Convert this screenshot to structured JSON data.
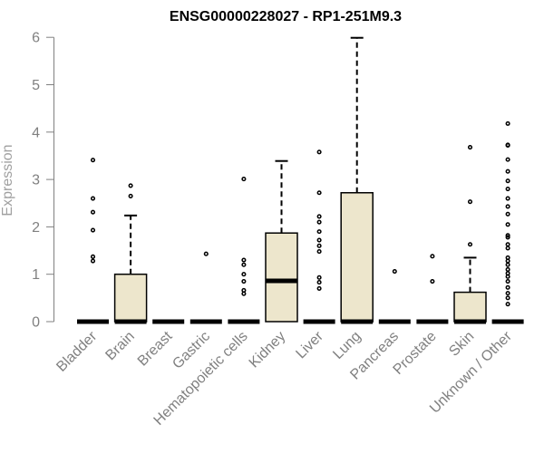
{
  "chart_data": {
    "type": "boxplot",
    "title": "ENSG00000228027 - RP1-251M9.3",
    "xlabel": "",
    "ylabel": "Expression",
    "ylim": [
      0,
      6
    ],
    "yticks": [
      0,
      1,
      2,
      3,
      4,
      5,
      6
    ],
    "box_color": "#EDE6CC",
    "categories": [
      "Bladder",
      "Brain",
      "Breast",
      "Gastric",
      "Hematopoietic cells",
      "Kidney",
      "Liver",
      "Lung",
      "Pancreas",
      "Prostate",
      "Skin",
      "Unknown / Other"
    ],
    "boxes": [
      {
        "category": "Bladder",
        "q1": 0,
        "median": 0,
        "q3": 0,
        "whisker_low": 0,
        "whisker_high": 0,
        "outliers": [
          1.28,
          1.37,
          1.93,
          2.31,
          2.6,
          3.41
        ]
      },
      {
        "category": "Brain",
        "q1": 0,
        "median": 0,
        "q3": 1.0,
        "whisker_low": 0,
        "whisker_high": 2.24,
        "outliers": [
          2.65,
          2.87
        ]
      },
      {
        "category": "Breast",
        "q1": 0,
        "median": 0,
        "q3": 0,
        "whisker_low": 0,
        "whisker_high": 0,
        "outliers": []
      },
      {
        "category": "Gastric",
        "q1": 0,
        "median": 0,
        "q3": 0,
        "whisker_low": 0,
        "whisker_high": 0,
        "outliers": [
          1.43
        ]
      },
      {
        "category": "Hematopoietic cells",
        "q1": 0,
        "median": 0,
        "q3": 0,
        "whisker_low": 0,
        "whisker_high": 0,
        "outliers": [
          0.59,
          0.66,
          0.85,
          1.0,
          1.2,
          1.3,
          3.01
        ]
      },
      {
        "category": "Kidney",
        "q1": 0,
        "median": 0.86,
        "q3": 1.87,
        "whisker_low": 0,
        "whisker_high": 3.39,
        "outliers": []
      },
      {
        "category": "Liver",
        "q1": 0,
        "median": 0,
        "q3": 0,
        "whisker_low": 0,
        "whisker_high": 0,
        "outliers": [
          0.7,
          0.83,
          0.93,
          1.48,
          1.6,
          1.72,
          1.9,
          2.1,
          2.22,
          2.72,
          3.58
        ]
      },
      {
        "category": "Lung",
        "q1": 0,
        "median": 0,
        "q3": 2.72,
        "whisker_low": 0,
        "whisker_high": 5.99,
        "outliers": []
      },
      {
        "category": "Pancreas",
        "q1": 0,
        "median": 0,
        "q3": 0,
        "whisker_low": 0,
        "whisker_high": 0,
        "outliers": [
          1.06
        ]
      },
      {
        "category": "Prostate",
        "q1": 0,
        "median": 0,
        "q3": 0,
        "whisker_low": 0,
        "whisker_high": 0,
        "outliers": [
          0.85,
          1.38
        ]
      },
      {
        "category": "Skin",
        "q1": 0,
        "median": 0,
        "q3": 0.62,
        "whisker_low": 0,
        "whisker_high": 1.35,
        "outliers": [
          1.63,
          2.53,
          3.68
        ]
      },
      {
        "category": "Unknown / Other",
        "q1": 0,
        "median": 0,
        "q3": 0,
        "whisker_low": 0,
        "whisker_high": 0,
        "outliers": [
          0.37,
          0.5,
          0.6,
          0.72,
          0.85,
          0.95,
          1.02,
          1.1,
          1.2,
          1.28,
          1.35,
          1.55,
          1.63,
          1.78,
          1.82,
          2.05,
          2.27,
          2.43,
          2.6,
          2.8,
          2.97,
          3.17,
          3.42,
          3.72,
          3.73,
          4.18
        ]
      }
    ]
  }
}
